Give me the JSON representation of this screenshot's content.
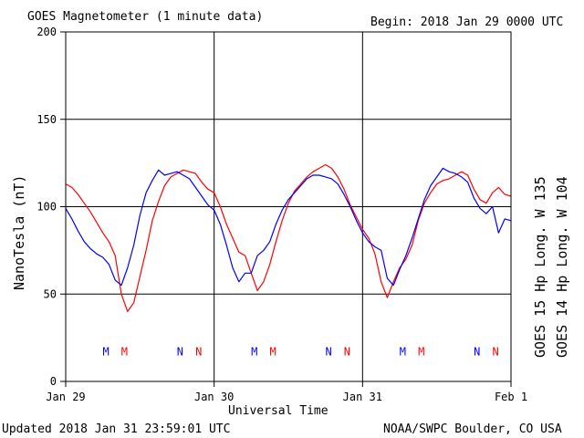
{
  "header": {
    "title": "GOES Magnetometer (1 minute data)",
    "begin": "Begin:  2018 Jan 29 0000 UTC"
  },
  "footer": {
    "updated": "Updated 2018 Jan 31 23:59:01 UTC",
    "credit": "NOAA/SWPC Boulder, CO USA"
  },
  "colors": {
    "goes15": "#ff0000",
    "goes14": "#0000ff",
    "frame": "#000000"
  },
  "chart_data": {
    "type": "line",
    "title": "GOES Magnetometer (1 minute data)",
    "xlabel": "Universal Time",
    "ylabel": "NanoTesla (nT)",
    "xlim": [
      0,
      72
    ],
    "ylim": [
      0,
      200
    ],
    "x_unit": "hours since 2018 Jan 29 0000 UTC",
    "xticks": [
      {
        "x": 0,
        "label": "Jan 29"
      },
      {
        "x": 24,
        "label": "Jan 30"
      },
      {
        "x": 48,
        "label": "Jan 31"
      },
      {
        "x": 72,
        "label": "Feb 1"
      }
    ],
    "yticks": [
      0,
      50,
      100,
      150,
      200
    ],
    "grid": true,
    "series": [
      {
        "name": "GOES 15 Hp  Long. W 135",
        "color": "#ff0000",
        "points": [
          [
            0,
            113
          ],
          [
            1,
            111
          ],
          [
            2,
            107
          ],
          [
            3,
            102
          ],
          [
            4,
            97
          ],
          [
            5,
            91
          ],
          [
            6,
            85
          ],
          [
            7,
            80
          ],
          [
            8,
            72
          ],
          [
            9,
            50
          ],
          [
            10,
            40
          ],
          [
            11,
            45
          ],
          [
            12,
            60
          ],
          [
            13,
            75
          ],
          [
            14,
            92
          ],
          [
            15,
            103
          ],
          [
            16,
            112
          ],
          [
            17,
            117
          ],
          [
            18,
            119
          ],
          [
            19,
            121
          ],
          [
            20,
            120
          ],
          [
            21,
            119
          ],
          [
            22,
            114
          ],
          [
            23,
            110
          ],
          [
            24,
            108
          ],
          [
            25,
            100
          ],
          [
            26,
            90
          ],
          [
            27,
            82
          ],
          [
            28,
            74
          ],
          [
            29,
            72
          ],
          [
            30,
            62
          ],
          [
            31,
            52
          ],
          [
            32,
            57
          ],
          [
            33,
            67
          ],
          [
            34,
            80
          ],
          [
            35,
            92
          ],
          [
            36,
            102
          ],
          [
            37,
            109
          ],
          [
            38,
            113
          ],
          [
            39,
            117
          ],
          [
            40,
            120
          ],
          [
            41,
            122
          ],
          [
            42,
            124
          ],
          [
            43,
            122
          ],
          [
            44,
            117
          ],
          [
            45,
            110
          ],
          [
            46,
            101
          ],
          [
            47,
            94
          ],
          [
            48,
            87
          ],
          [
            49,
            82
          ],
          [
            50,
            73
          ],
          [
            51,
            57
          ],
          [
            52,
            48
          ],
          [
            53,
            57
          ],
          [
            54,
            65
          ],
          [
            55,
            70
          ],
          [
            56,
            78
          ],
          [
            57,
            92
          ],
          [
            58,
            102
          ],
          [
            59,
            108
          ],
          [
            60,
            113
          ],
          [
            61,
            115
          ],
          [
            62,
            116
          ],
          [
            63,
            118
          ],
          [
            64,
            120
          ],
          [
            65,
            118
          ],
          [
            66,
            110
          ],
          [
            67,
            104
          ],
          [
            68,
            102
          ],
          [
            69,
            108
          ],
          [
            70,
            111
          ],
          [
            71,
            107
          ],
          [
            72,
            106
          ]
        ]
      },
      {
        "name": "GOES 14 Hp  Long. W 104",
        "color": "#0000ff",
        "points": [
          [
            0,
            99
          ],
          [
            1,
            93
          ],
          [
            2,
            86
          ],
          [
            3,
            80
          ],
          [
            4,
            76
          ],
          [
            5,
            73
          ],
          [
            6,
            71
          ],
          [
            7,
            67
          ],
          [
            8,
            58
          ],
          [
            9,
            55
          ],
          [
            10,
            65
          ],
          [
            11,
            78
          ],
          [
            12,
            95
          ],
          [
            13,
            108
          ],
          [
            14,
            115
          ],
          [
            15,
            121
          ],
          [
            16,
            118
          ],
          [
            17,
            119
          ],
          [
            18,
            120
          ],
          [
            19,
            118
          ],
          [
            20,
            116
          ],
          [
            21,
            111
          ],
          [
            22,
            106
          ],
          [
            23,
            101
          ],
          [
            24,
            98
          ],
          [
            25,
            90
          ],
          [
            26,
            78
          ],
          [
            27,
            65
          ],
          [
            28,
            57
          ],
          [
            29,
            62
          ],
          [
            30,
            62
          ],
          [
            31,
            72
          ],
          [
            32,
            75
          ],
          [
            33,
            80
          ],
          [
            34,
            90
          ],
          [
            35,
            98
          ],
          [
            36,
            104
          ],
          [
            37,
            108
          ],
          [
            38,
            112
          ],
          [
            39,
            116
          ],
          [
            40,
            118
          ],
          [
            41,
            118
          ],
          [
            42,
            117
          ],
          [
            43,
            116
          ],
          [
            44,
            113
          ],
          [
            45,
            107
          ],
          [
            46,
            100
          ],
          [
            47,
            92
          ],
          [
            48,
            85
          ],
          [
            49,
            80
          ],
          [
            50,
            77
          ],
          [
            51,
            75
          ],
          [
            52,
            59
          ],
          [
            53,
            55
          ],
          [
            54,
            64
          ],
          [
            55,
            72
          ],
          [
            56,
            82
          ],
          [
            57,
            93
          ],
          [
            58,
            104
          ],
          [
            59,
            112
          ],
          [
            60,
            117
          ],
          [
            61,
            122
          ],
          [
            62,
            120
          ],
          [
            63,
            119
          ],
          [
            64,
            117
          ],
          [
            65,
            114
          ],
          [
            66,
            105
          ],
          [
            67,
            99
          ],
          [
            68,
            96
          ],
          [
            69,
            100
          ],
          [
            70,
            85
          ],
          [
            71,
            93
          ],
          [
            72,
            92
          ]
        ]
      }
    ],
    "markers": [
      {
        "label": "M",
        "x": 6.5,
        "series": "GOES 14 Hp  Long. W 104"
      },
      {
        "label": "M",
        "x": 9.5,
        "series": "GOES 15 Hp  Long. W 135"
      },
      {
        "label": "N",
        "x": 18.5,
        "series": "GOES 14 Hp  Long. W 104"
      },
      {
        "label": "N",
        "x": 21.5,
        "series": "GOES 15 Hp  Long. W 135"
      },
      {
        "label": "M",
        "x": 30.5,
        "series": "GOES 14 Hp  Long. W 104"
      },
      {
        "label": "M",
        "x": 33.5,
        "series": "GOES 15 Hp  Long. W 135"
      },
      {
        "label": "N",
        "x": 42.5,
        "series": "GOES 14 Hp  Long. W 104"
      },
      {
        "label": "N",
        "x": 45.5,
        "series": "GOES 15 Hp  Long. W 135"
      },
      {
        "label": "M",
        "x": 54.5,
        "series": "GOES 14 Hp  Long. W 104"
      },
      {
        "label": "M",
        "x": 57.5,
        "series": "GOES 15 Hp  Long. W 135"
      },
      {
        "label": "N",
        "x": 66.5,
        "series": "GOES 14 Hp  Long. W 104"
      },
      {
        "label": "N",
        "x": 69.5,
        "series": "GOES 15 Hp  Long. W 135"
      }
    ],
    "marker_level": 17
  }
}
